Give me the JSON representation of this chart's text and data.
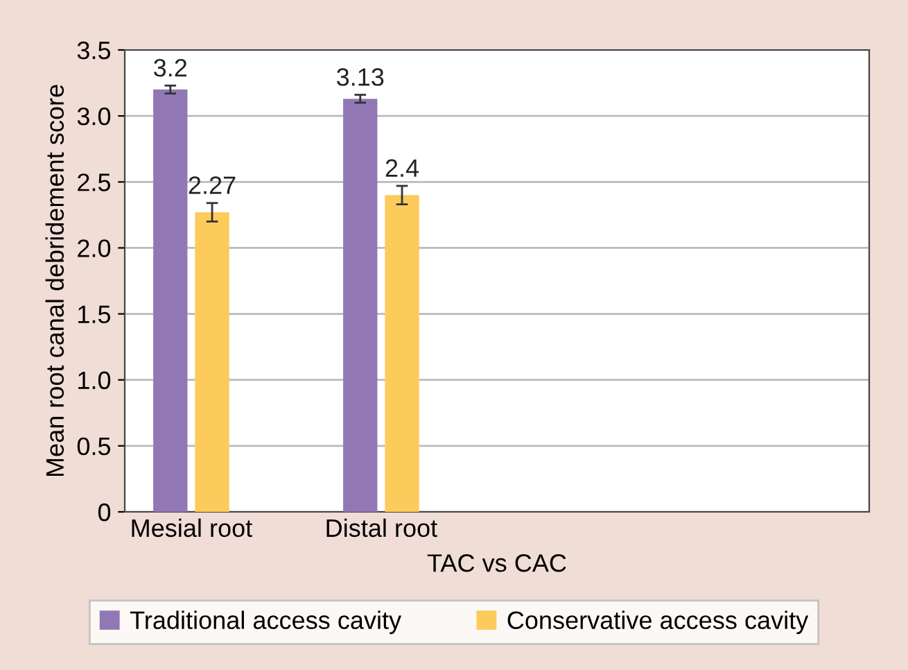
{
  "chart_data": {
    "type": "bar",
    "xlabel": "TAC vs CAC",
    "ylabel": "Mean root canal debridement score",
    "categories": [
      "Mesial root",
      "Distal root"
    ],
    "series": [
      {
        "name": "Traditional access cavity",
        "color": "#9178b5",
        "values": [
          3.2,
          3.13
        ],
        "errors": [
          0.03,
          0.03
        ]
      },
      {
        "name": "Conservative access cavity",
        "color": "#fccb5c",
        "values": [
          2.27,
          2.4
        ],
        "errors": [
          0.07,
          0.07
        ]
      }
    ],
    "ylim": [
      0,
      3.5
    ],
    "yticks": [
      0,
      0.5,
      {
        "value": 1,
        "label": "1.0"
      },
      1.5,
      {
        "value": 2,
        "label": "2.0"
      },
      2.5,
      {
        "value": 3,
        "label": "3.0"
      },
      3.5
    ],
    "grid": "y",
    "legend": "bottom",
    "data_labels": true
  }
}
